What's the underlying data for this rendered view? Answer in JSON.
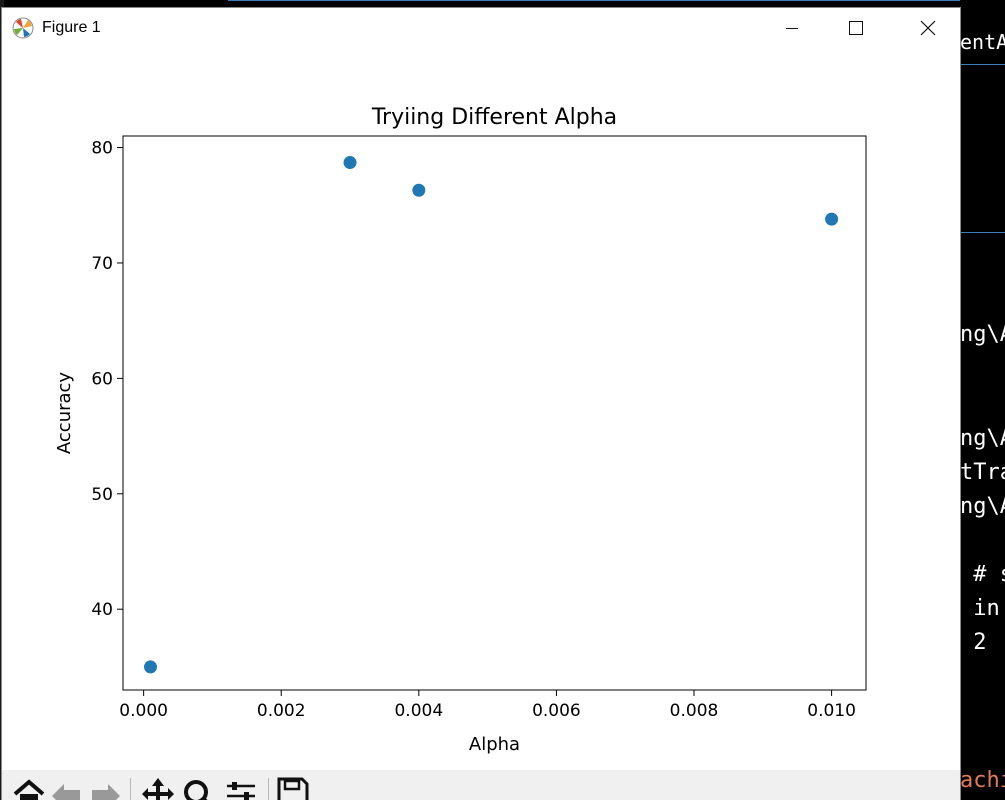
{
  "window": {
    "title": "Figure 1",
    "controls": {
      "minimize": "minimize-icon",
      "maximize": "maximize-icon",
      "close": "close-icon"
    }
  },
  "background_editor": {
    "lines": [
      "entAl",
      "ng\\A",
      "ng\\A",
      "tTra",
      "ng\\A",
      " # s",
      " in",
      " 2",
      "achi"
    ],
    "text_color": "#ffffff",
    "last_line_color": "#e07b53"
  },
  "toolbar": {
    "items": [
      "home-icon",
      "back-icon",
      "forward-icon",
      "pan-icon",
      "zoom-icon",
      "configure-subplots-icon",
      "save-icon"
    ]
  },
  "chart_data": {
    "type": "scatter",
    "title": "Tryiing Different Alpha",
    "xlabel": "Alpha",
    "ylabel": "Accuracy",
    "xlim": [
      -0.0003,
      0.0105
    ],
    "ylim": [
      33.0,
      81.0
    ],
    "x_ticks": [
      0.0,
      0.002,
      0.004,
      0.006,
      0.008,
      0.01
    ],
    "x_tick_labels": [
      "0.000",
      "0.002",
      "0.004",
      "0.006",
      "0.008",
      "0.010"
    ],
    "y_ticks": [
      40,
      50,
      60,
      70,
      80
    ],
    "y_tick_labels": [
      "40",
      "50",
      "60",
      "70",
      "80"
    ],
    "grid": false,
    "marker_color": "#1f77b4",
    "points": [
      {
        "x": 0.0001,
        "y": 35.0
      },
      {
        "x": 0.003,
        "y": 78.7
      },
      {
        "x": 0.004,
        "y": 76.3
      },
      {
        "x": 0.01,
        "y": 73.8
      }
    ]
  }
}
